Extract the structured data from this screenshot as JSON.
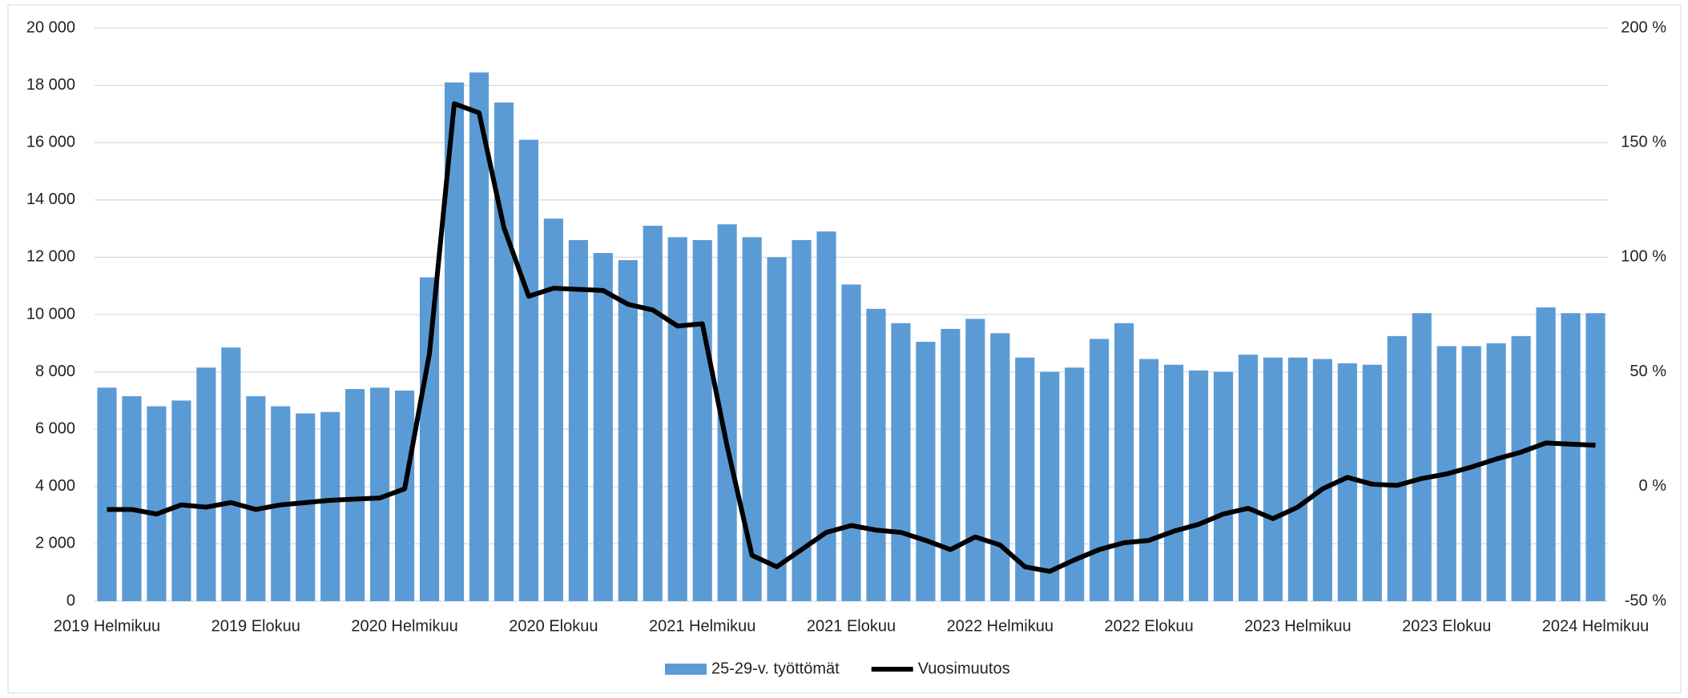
{
  "chart_data": {
    "type": "bar-line",
    "categories": [
      "2019 Helmikuu",
      null,
      null,
      null,
      null,
      null,
      "2019 Elokuu",
      null,
      null,
      null,
      null,
      null,
      "2020 Helmikuu",
      null,
      null,
      null,
      null,
      null,
      "2020 Elokuu",
      null,
      null,
      null,
      null,
      null,
      "2021 Helmikuu",
      null,
      null,
      null,
      null,
      null,
      "2021 Elokuu",
      null,
      null,
      null,
      null,
      null,
      "2022 Helmikuu",
      null,
      null,
      null,
      null,
      null,
      "2022 Elokuu",
      null,
      null,
      null,
      null,
      null,
      "2023 Helmikuu",
      null,
      null,
      null,
      null,
      null,
      "2023 Elokuu",
      null,
      null,
      null,
      null,
      null,
      "2024 Helmikuu"
    ],
    "series": [
      {
        "name": "25-29-v. työttömät",
        "color": "#5b9bd5",
        "kind": "bar",
        "values": [
          7450,
          7150,
          6800,
          7000,
          8150,
          8850,
          7150,
          6800,
          6550,
          6600,
          7400,
          7450,
          7350,
          11300,
          18100,
          18450,
          17400,
          16100,
          13350,
          12600,
          12150,
          11900,
          13100,
          12700,
          12600,
          13150,
          12700,
          12000,
          12600,
          12900,
          11050,
          10200,
          9700,
          9050,
          9500,
          9850,
          9350,
          8500,
          8000,
          8150,
          9150,
          9700,
          8450,
          8250,
          8050,
          8000,
          8600,
          8500,
          8500,
          8450,
          8300,
          8250,
          9250,
          10050,
          8900,
          8900,
          9000,
          9250,
          10250,
          10050,
          10050
        ]
      },
      {
        "name": "Vuosimuutos",
        "color": "#000000",
        "kind": "line",
        "axis": "y2",
        "values": [
          -10,
          -10,
          -12,
          -8,
          -9,
          -7,
          -10,
          -8,
          -7,
          -6,
          -5.5,
          -5,
          -1,
          58,
          167,
          163,
          113,
          83,
          86.5,
          86,
          85.5,
          79.5,
          77,
          70,
          71,
          17.5,
          -30,
          -35,
          -27.5,
          -20,
          -17,
          -19,
          -20,
          -23.5,
          -27.5,
          -22,
          -25.5,
          -35,
          -37,
          -32,
          -27.5,
          -24.5,
          -23.5,
          -19.5,
          -16.5,
          -12,
          -9.5,
          -14,
          -9,
          -1,
          4,
          1,
          0.5,
          3.5,
          5.5,
          8.5,
          12,
          15,
          19,
          18.5,
          18
        ]
      }
    ],
    "ylim": [
      0,
      20000
    ],
    "yticks": [
      0,
      {
        "value": 2000,
        "label": "2 000"
      },
      {
        "value": 4000,
        "label": "4 000"
      },
      {
        "value": 6000,
        "label": "6 000"
      },
      {
        "value": 8000,
        "label": "8 000"
      },
      {
        "value": 10000,
        "label": "10 000"
      },
      {
        "value": 12000,
        "label": "12 000"
      },
      {
        "value": 14000,
        "label": "14 000"
      },
      {
        "value": 16000,
        "label": "16 000"
      },
      {
        "value": 18000,
        "label": "18 000"
      },
      {
        "value": 20000,
        "label": "20 000"
      }
    ],
    "y2lim": [
      -50,
      200
    ],
    "y2ticks": [
      {
        "value": -50,
        "label": "-50 %"
      },
      {
        "value": 0,
        "label": "0 %"
      },
      {
        "value": 50,
        "label": "50 %"
      },
      {
        "value": 100,
        "label": "100 %"
      },
      {
        "value": 150,
        "label": "150 %"
      },
      {
        "value": 200,
        "label": "200 %"
      }
    ],
    "grid": true,
    "legend": "bottom"
  }
}
